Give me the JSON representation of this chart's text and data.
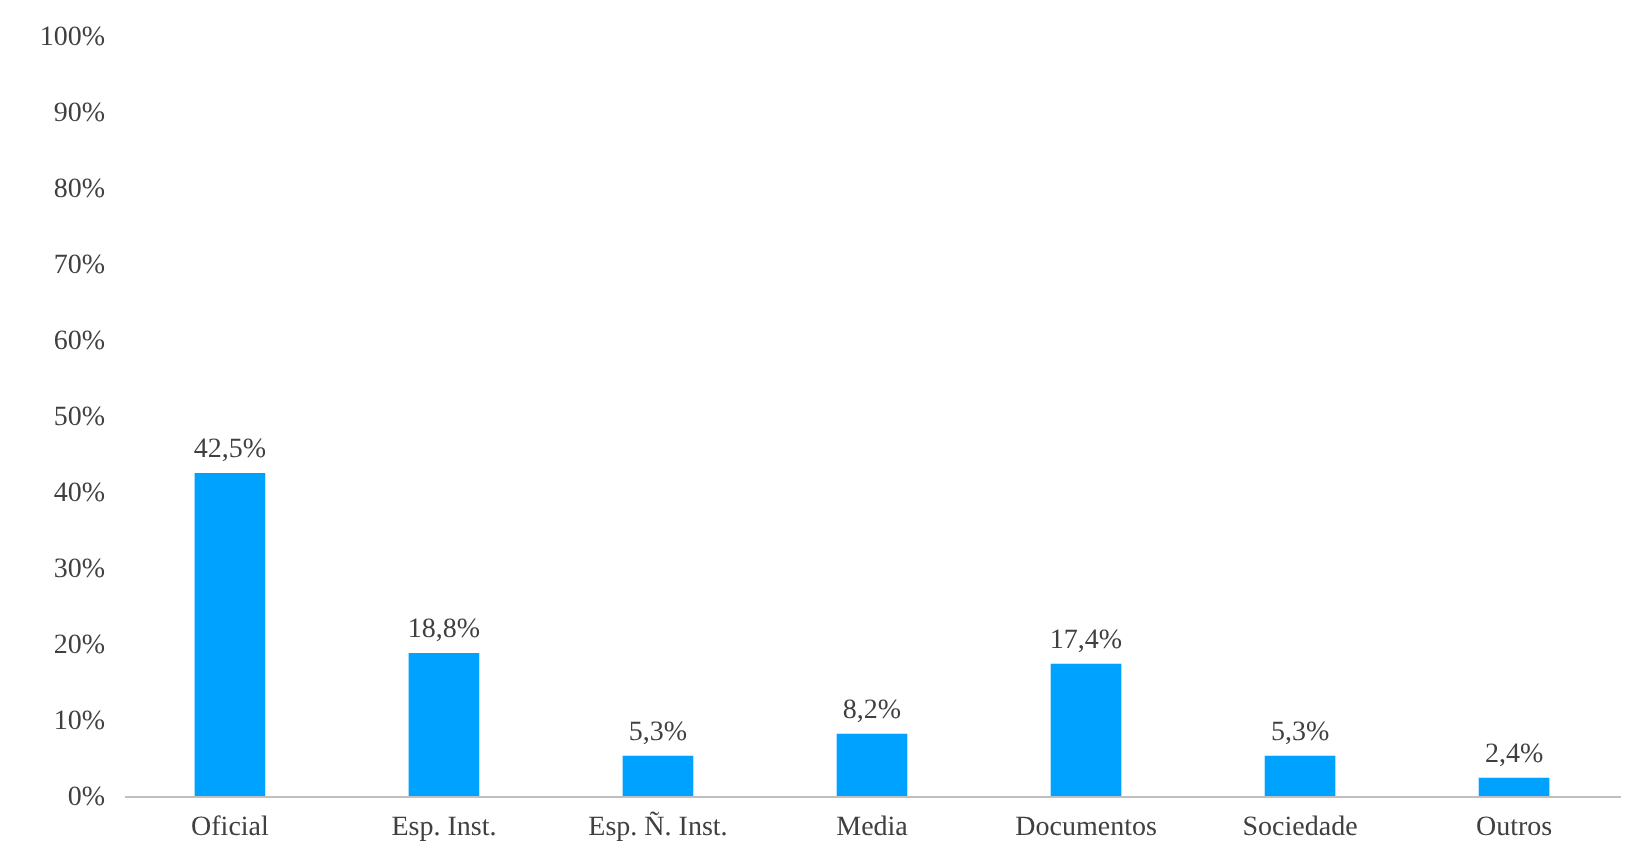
{
  "chart_data": {
    "type": "bar",
    "categories": [
      "Oficial",
      "Esp. Inst.",
      "Esp. Ñ. Inst.",
      "Media",
      "Documentos",
      "Sociedade",
      "Outros"
    ],
    "values": [
      42.5,
      18.8,
      5.3,
      8.2,
      17.4,
      5.3,
      2.4
    ],
    "value_labels": [
      "42,5%",
      "18,8%",
      "5,3%",
      "8,2%",
      "17,4%",
      "5,3%",
      "2,4%"
    ],
    "color": "#00a2ff",
    "ylim": [
      0,
      100
    ],
    "yticks": [
      {
        "value": 0,
        "label": "0%"
      },
      {
        "value": 10,
        "label": "10%"
      },
      {
        "value": 20,
        "label": "20%"
      },
      {
        "value": 30,
        "label": "30%"
      },
      {
        "value": 40,
        "label": "40%"
      },
      {
        "value": 50,
        "label": "50%"
      },
      {
        "value": 60,
        "label": "60%"
      },
      {
        "value": 70,
        "label": "70%"
      },
      {
        "value": 80,
        "label": "80%"
      },
      {
        "value": 90,
        "label": "90%"
      },
      {
        "value": 100,
        "label": "100%"
      }
    ],
    "grid": false
  }
}
